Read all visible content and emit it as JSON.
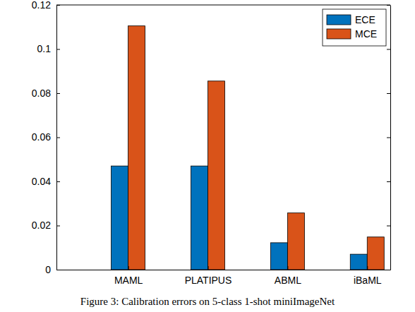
{
  "chart_data": {
    "type": "bar",
    "title": "Figure 3: Calibration errors on 5-class 1-shot miniImageNet",
    "categories": [
      "MAML",
      "PLATIPUS",
      "ABML",
      "iBaML"
    ],
    "series": [
      {
        "name": "ECE",
        "color": "#0072bd",
        "values": [
          0.047,
          0.047,
          0.0122,
          0.007
        ]
      },
      {
        "name": "MCE",
        "color": "#d95319",
        "values": [
          0.1105,
          0.0855,
          0.0257,
          0.0148
        ]
      }
    ],
    "ylim": [
      0,
      0.12
    ],
    "yticks": [
      0,
      0.02,
      0.04,
      0.06,
      0.08,
      0.1,
      0.12
    ],
    "grid": false,
    "legend": "upper right"
  }
}
